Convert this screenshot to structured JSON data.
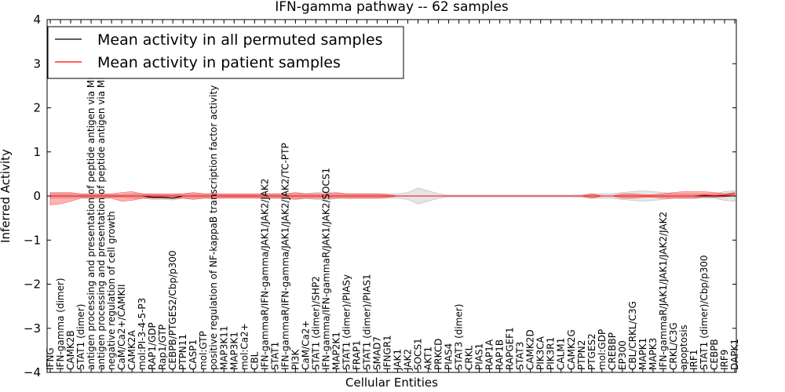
{
  "chart_data": {
    "type": "line",
    "title": "IFN-gamma pathway -- 62 samples",
    "xlabel": "Cellular Entities",
    "ylabel": "Inferred Activity",
    "ylim": [
      -4,
      4
    ],
    "yticks": [
      -4,
      -3,
      -2,
      -1,
      0,
      1,
      2,
      3,
      4
    ],
    "legend_position": "top-left",
    "categories": [
      "IFNG",
      "IFN-gamma (dimer)",
      "CAMK2B",
      "STAT1 (dimer)",
      "antigen processing and presentation of peptide antigen via MHC class I",
      "antigen processing and presentation of peptide antigen via MHC class II",
      "negative regulation of cell growth",
      "CaM/Ca2+/CAMKII",
      "CAMK2A",
      "mol:PI-3-4-5-P3",
      "RAP1/GDP",
      "Rap1/GTP",
      "CEBPB/PTGES2/Cbp/p300",
      "PTPN11",
      "CASP1",
      "mol:GTP",
      "positive regulation of NF-kappaB transcription factor activity",
      "MAP3K11",
      "MAP3K1",
      "mol:Ca2+",
      "CBL",
      "IFN-gammaR/IFN-gamma/JAK1/JAK2/JAK2",
      "STAT1",
      "IFN-gammaR/IFN-gamma/JAK1/JAK2/JAK2/TC-PTP",
      "PI3K",
      "CaM/Ca2+",
      "STAT1 (dimer)/SHP2",
      "IFN-gamma/IFN-gammaR/JAK1/JAK2/SOCS1",
      "MAP2K1",
      "STAT1 (dimer)/PIASy",
      "FRAP1",
      "STAT1 (dimer)/PIAS1",
      "SMAD7",
      "IFNGR1",
      "JAK1",
      "JAK2",
      "SOCS1",
      "AKT1",
      "PRKCD",
      "PIAS4",
      "STAT3 (dimer)",
      "CRKL",
      "PIAS1",
      "RAP1A",
      "RAP1B",
      "RAPGEF1",
      "STAT3",
      "CAMK2D",
      "PIK3CA",
      "PIK3R1",
      "CALM1",
      "CAMK2G",
      "PTPN2",
      "PTGES2",
      "mol:GDP",
      "CREBBP",
      "EP300",
      "CBL/CRKL/C3G",
      "MAPK1",
      "MAPK3",
      "IFN-gammaR/JAK1/JAK1/JAK2/JAK2",
      "CRKL/C3G",
      "apoptosis",
      "IRF1",
      "STAT1 (dimer)/Cbp/p300",
      "CEBPB",
      "IRF9",
      "DAPK1"
    ],
    "series": [
      {
        "name": "Mean activity in all permuted samples",
        "color": "#000000",
        "values": [
          0,
          0,
          0,
          0,
          0,
          0,
          0,
          0,
          0,
          0,
          -0.03,
          -0.03,
          -0.05,
          0,
          0,
          0,
          0,
          0,
          0,
          0,
          0,
          0,
          0,
          0,
          0,
          0,
          0,
          0,
          0,
          0,
          0,
          0,
          0,
          0,
          0,
          0,
          0,
          0,
          0,
          0,
          0,
          0,
          0,
          0,
          0,
          0,
          0,
          0,
          0,
          0,
          0,
          0,
          0,
          0,
          0,
          0,
          0,
          0,
          0,
          0,
          0,
          0,
          0,
          0,
          0,
          0,
          0,
          0
        ],
        "band_low": [
          -0.05,
          -0.05,
          -0.05,
          -0.03,
          -0.03,
          -0.03,
          -0.03,
          -0.03,
          -0.05,
          -0.05,
          -0.08,
          -0.08,
          -0.09,
          -0.05,
          -0.05,
          -0.05,
          -0.05,
          -0.03,
          -0.03,
          -0.03,
          -0.03,
          -0.05,
          -0.05,
          -0.05,
          -0.05,
          -0.05,
          -0.08,
          -0.1,
          -0.05,
          -0.05,
          -0.05,
          -0.05,
          -0.05,
          -0.05,
          -0.05,
          -0.08,
          -0.18,
          -0.12,
          -0.05,
          -0.02,
          -0.02,
          -0.02,
          -0.02,
          -0.02,
          -0.02,
          -0.02,
          -0.02,
          -0.02,
          -0.02,
          -0.02,
          -0.02,
          -0.02,
          -0.03,
          -0.05,
          -0.05,
          -0.05,
          -0.08,
          -0.1,
          -0.12,
          -0.1,
          -0.08,
          -0.05,
          -0.05,
          -0.05,
          -0.05,
          -0.05,
          -0.1,
          -0.12
        ],
        "band_high": [
          0.05,
          0.05,
          0.05,
          0.03,
          0.03,
          0.03,
          0.03,
          0.03,
          0.05,
          0.05,
          0.03,
          0.03,
          0.02,
          0.05,
          0.05,
          0.05,
          0.05,
          0.03,
          0.03,
          0.03,
          0.03,
          0.05,
          0.05,
          0.05,
          0.05,
          0.05,
          0.08,
          0.1,
          0.05,
          0.05,
          0.05,
          0.05,
          0.05,
          0.05,
          0.05,
          0.08,
          0.18,
          0.12,
          0.05,
          0.02,
          0.02,
          0.02,
          0.02,
          0.02,
          0.02,
          0.02,
          0.02,
          0.02,
          0.02,
          0.02,
          0.02,
          0.02,
          0.03,
          0.05,
          0.05,
          0.05,
          0.08,
          0.1,
          0.12,
          0.1,
          0.08,
          0.05,
          0.05,
          0.05,
          0.05,
          0.05,
          0.1,
          0.12
        ]
      },
      {
        "name": "Mean activity in patient samples",
        "color": "#ff0000",
        "values": [
          0,
          0,
          0,
          0,
          0,
          0,
          0,
          0,
          0,
          0,
          0,
          0,
          0,
          0,
          0,
          0,
          0,
          0,
          0,
          0,
          0,
          0,
          0,
          0,
          0,
          0,
          0,
          0,
          0,
          0,
          0,
          0,
          0,
          0,
          0,
          0,
          0,
          0,
          0,
          0,
          0,
          0,
          0,
          0,
          0,
          0,
          0,
          0,
          0,
          0,
          0,
          0,
          0,
          0,
          0,
          0,
          0,
          0,
          0,
          0,
          0,
          0,
          0,
          0,
          0.02,
          0.01,
          0.02,
          0.05
        ],
        "band_low": [
          -0.2,
          -0.18,
          -0.12,
          -0.05,
          -0.05,
          -0.05,
          -0.05,
          -0.12,
          -0.1,
          -0.05,
          -0.05,
          -0.05,
          -0.05,
          -0.05,
          -0.08,
          -0.05,
          -0.05,
          -0.05,
          -0.05,
          -0.05,
          -0.05,
          -0.05,
          -0.05,
          -0.05,
          -0.08,
          -0.05,
          -0.05,
          -0.05,
          -0.05,
          -0.05,
          -0.05,
          -0.05,
          -0.05,
          -0.03,
          0,
          0,
          0,
          0,
          0,
          0,
          0,
          0,
          0,
          0,
          0,
          0,
          0,
          0,
          0,
          0,
          0,
          0,
          0,
          -0.05,
          0,
          0,
          -0.05,
          -0.05,
          -0.03,
          -0.03,
          -0.05,
          -0.05,
          -0.05,
          -0.05,
          -0.02,
          -0.03,
          -0.02,
          0
        ],
        "band_high": [
          0.08,
          0.08,
          0.08,
          0.05,
          0.05,
          0.05,
          0.05,
          0.08,
          0.1,
          0.05,
          0.05,
          0.05,
          0.05,
          0.05,
          0.08,
          0.05,
          0.05,
          0.05,
          0.05,
          0.05,
          0.05,
          0.05,
          0.05,
          0.05,
          0.08,
          0.05,
          0.05,
          0.05,
          0.08,
          0.05,
          0.05,
          0.05,
          0.05,
          0.03,
          0,
          0,
          0,
          0,
          0,
          0,
          0,
          0,
          0,
          0,
          0,
          0,
          0,
          0,
          0,
          0,
          0,
          0,
          0,
          0.05,
          0,
          0,
          0.05,
          0.05,
          0.03,
          0.03,
          0.05,
          0.08,
          0.1,
          0.1,
          0.1,
          0.08,
          0.05,
          0.08
        ]
      }
    ]
  }
}
